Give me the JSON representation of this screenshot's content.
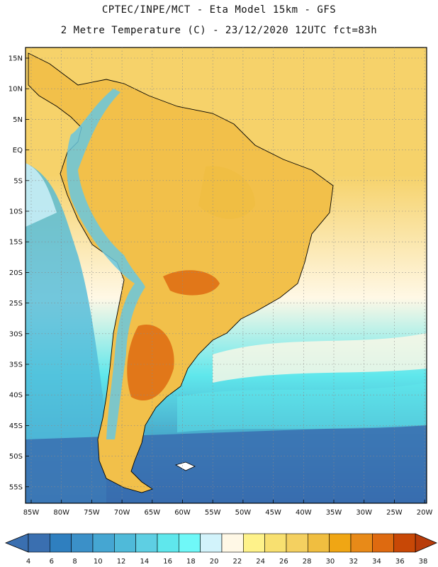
{
  "header": {
    "line1": "CPTEC/INPE/MCT -  Eta Model 15km - GFS",
    "line2": "2 Metre Temperature (C) - 23/12/2020 12UTC fct=83h"
  },
  "map": {
    "lat_labels": [
      "15N",
      "10N",
      "5N",
      "EQ",
      "5S",
      "10S",
      "15S",
      "20S",
      "25S",
      "30S",
      "35S",
      "40S",
      "45S",
      "50S",
      "55S"
    ],
    "lon_labels": [
      "85W",
      "80W",
      "75W",
      "70W",
      "65W",
      "60W",
      "55W",
      "50W",
      "45W",
      "40W",
      "35W",
      "30W",
      "25W",
      "20W"
    ]
  },
  "colorbar": {
    "ticks": [
      "4",
      "6",
      "8",
      "10",
      "12",
      "14",
      "16",
      "18",
      "20",
      "22",
      "24",
      "26",
      "28",
      "30",
      "32",
      "34",
      "36",
      "38"
    ],
    "colors": [
      "#3a6fb0",
      "#2f7fbf",
      "#3b90c8",
      "#45a6d2",
      "#4fbad9",
      "#5ecfe3",
      "#5fe7ec",
      "#6ff8f8",
      "#d2f3fb",
      "#fff8e6",
      "#fef28a",
      "#f8e070",
      "#f4d060",
      "#f0be40",
      "#f0a614",
      "#e88a18",
      "#de6a10",
      "#c84806"
    ],
    "left_arrow_color": "#3a6fb0",
    "right_arrow_color": "#b83c0a"
  },
  "field_colors": {
    "ocean_cold": "#2e64a6",
    "ocean_mid": "#48bbd6",
    "ocean_cyan": "#5fe7ec",
    "ocean_warm": "#f6d26a",
    "land_warm": "#f2c04a",
    "land_hot": "#df8a2a",
    "andes": "#69c7df"
  }
}
